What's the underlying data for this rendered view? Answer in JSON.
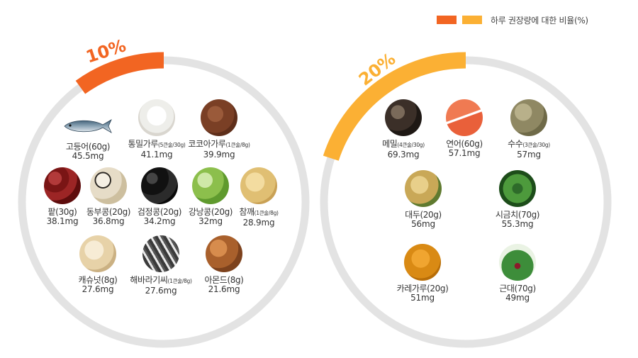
{
  "legend": {
    "label": "하루 권장량에 대한 비율(%)",
    "colors": [
      "#f26522",
      "#fbb034"
    ]
  },
  "chart_data": {
    "type": "ring-groups",
    "groups": [
      {
        "percent_label": "10%",
        "percent": 10,
        "color": "#f26522",
        "track_color": "#e3e3e3",
        "items": [
          {
            "name": "고등어(60g)",
            "amount": "45.5mg",
            "image": "mackerel"
          },
          {
            "name": "통밀가루",
            "qty": "(5큰술/30g)",
            "amount": "41.1mg",
            "image": "whole-wheat-flour"
          },
          {
            "name": "코코아가루",
            "qty": "(1큰술/8g)",
            "amount": "39.9mg",
            "image": "cocoa-powder"
          },
          {
            "name": "팥(30g)",
            "amount": "38.1mg",
            "image": "red-beans"
          },
          {
            "name": "동부콩(20g)",
            "amount": "36.8mg",
            "image": "cowpeas"
          },
          {
            "name": "검정콩(20g)",
            "amount": "34.2mg",
            "image": "black-beans"
          },
          {
            "name": "강낭콩(20g)",
            "amount": "32mg",
            "image": "kidney-beans"
          },
          {
            "name": "참깨",
            "qty": "(1큰술/8g)",
            "amount": "28.9mg",
            "image": "sesame"
          },
          {
            "name": "캐슈넛(8g)",
            "amount": "27.6mg",
            "image": "cashews"
          },
          {
            "name": "해바라기씨",
            "qty": "(1큰술/8g)",
            "amount": "27.6mg",
            "image": "sunflower-seeds"
          },
          {
            "name": "아몬드(8g)",
            "amount": "21.6mg",
            "image": "almonds"
          }
        ]
      },
      {
        "percent_label": "20%",
        "percent": 20,
        "color": "#fbb034",
        "track_color": "#e3e3e3",
        "items": [
          {
            "name": "메밀",
            "qty": "(4큰술/30g)",
            "amount": "69.3mg",
            "image": "buckwheat"
          },
          {
            "name": "연어(60g)",
            "amount": "57.1mg",
            "image": "salmon"
          },
          {
            "name": "수수",
            "qty": "(3큰술/30g)",
            "amount": "57mg",
            "image": "sorghum"
          },
          {
            "name": "대두(20g)",
            "amount": "56mg",
            "image": "soybeans"
          },
          {
            "name": "시금치(70g)",
            "amount": "55.3mg",
            "image": "spinach"
          },
          {
            "name": "카레가루(20g)",
            "amount": "51mg",
            "image": "curry-powder"
          },
          {
            "name": "근대(70g)",
            "amount": "49mg",
            "image": "chard"
          }
        ]
      }
    ]
  }
}
